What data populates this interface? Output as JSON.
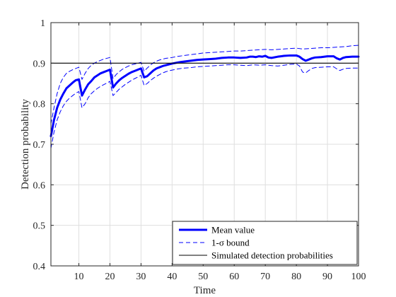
{
  "chart_data": {
    "type": "line",
    "xlabel": "Time",
    "ylabel": "Detection probability",
    "xlim": [
      1,
      100
    ],
    "ylim": [
      0.4,
      1
    ],
    "xticks": [
      10,
      20,
      30,
      40,
      50,
      60,
      70,
      80,
      90,
      100
    ],
    "yticks": [
      0.4,
      0.5,
      0.6,
      0.7,
      0.8,
      0.9,
      1
    ],
    "xtick_labels": [
      "10",
      "20",
      "30",
      "40",
      "50",
      "60",
      "70",
      "80",
      "90",
      "100"
    ],
    "ytick_labels": [
      "0.4",
      "0.5",
      "0.6",
      "0.7",
      "0.8",
      "0.9",
      "1"
    ],
    "grid": true,
    "legend_position": "bottom-right",
    "legend": [
      "Mean value",
      "1-σ bound",
      "Simulated detection probabilities"
    ],
    "colors": {
      "mean": "#0000ff",
      "bound": "#0000ff",
      "reference": "#000000",
      "grid": "#dfdfdf",
      "axis": "#262626"
    },
    "series": [
      {
        "name": "Mean value",
        "style": "solid-thick",
        "points": [
          [
            1,
            0.72
          ],
          [
            2,
            0.76
          ],
          [
            3,
            0.79
          ],
          [
            4,
            0.81
          ],
          [
            5,
            0.825
          ],
          [
            6,
            0.838
          ],
          [
            7,
            0.845
          ],
          [
            8,
            0.852
          ],
          [
            9,
            0.858
          ],
          [
            10,
            0.86
          ],
          [
            11,
            0.82
          ],
          [
            12,
            0.835
          ],
          [
            13,
            0.848
          ],
          [
            14,
            0.856
          ],
          [
            15,
            0.865
          ],
          [
            16,
            0.87
          ],
          [
            17,
            0.875
          ],
          [
            18,
            0.878
          ],
          [
            19,
            0.881
          ],
          [
            20,
            0.884
          ],
          [
            21,
            0.84
          ],
          [
            22,
            0.85
          ],
          [
            23,
            0.858
          ],
          [
            24,
            0.864
          ],
          [
            25,
            0.869
          ],
          [
            26,
            0.874
          ],
          [
            27,
            0.878
          ],
          [
            28,
            0.881
          ],
          [
            29,
            0.884
          ],
          [
            30,
            0.887
          ],
          [
            31,
            0.865
          ],
          [
            32,
            0.868
          ],
          [
            33,
            0.875
          ],
          [
            34,
            0.882
          ],
          [
            35,
            0.887
          ],
          [
            36,
            0.89
          ],
          [
            37,
            0.893
          ],
          [
            38,
            0.895
          ],
          [
            39,
            0.897
          ],
          [
            40,
            0.899
          ],
          [
            42,
            0.902
          ],
          [
            44,
            0.904
          ],
          [
            46,
            0.906
          ],
          [
            48,
            0.908
          ],
          [
            50,
            0.909
          ],
          [
            52,
            0.91
          ],
          [
            54,
            0.911
          ],
          [
            56,
            0.913
          ],
          [
            58,
            0.914
          ],
          [
            60,
            0.914
          ],
          [
            62,
            0.913
          ],
          [
            64,
            0.914
          ],
          [
            65,
            0.916
          ],
          [
            66,
            0.916
          ],
          [
            67,
            0.915
          ],
          [
            68,
            0.917
          ],
          [
            69,
            0.916
          ],
          [
            70,
            0.918
          ],
          [
            71,
            0.914
          ],
          [
            72,
            0.913
          ],
          [
            74,
            0.916
          ],
          [
            75,
            0.917
          ],
          [
            76,
            0.918
          ],
          [
            78,
            0.919
          ],
          [
            80,
            0.919
          ],
          [
            81,
            0.916
          ],
          [
            82,
            0.91
          ],
          [
            83,
            0.906
          ],
          [
            84,
            0.909
          ],
          [
            85,
            0.912
          ],
          [
            86,
            0.914
          ],
          [
            88,
            0.915
          ],
          [
            90,
            0.917
          ],
          [
            92,
            0.917
          ],
          [
            93,
            0.912
          ],
          [
            94,
            0.909
          ],
          [
            95,
            0.913
          ],
          [
            96,
            0.915
          ],
          [
            98,
            0.916
          ],
          [
            100,
            0.916
          ]
        ]
      },
      {
        "name": "1-σ bound",
        "style": "dashed",
        "points": [
          [
            1,
            0.75
          ],
          [
            2,
            0.79
          ],
          [
            3,
            0.825
          ],
          [
            4,
            0.85
          ],
          [
            5,
            0.865
          ],
          [
            6,
            0.875
          ],
          [
            7,
            0.88
          ],
          [
            8,
            0.884
          ],
          [
            9,
            0.887
          ],
          [
            10,
            0.89
          ],
          [
            11,
            0.86
          ],
          [
            12,
            0.875
          ],
          [
            13,
            0.887
          ],
          [
            14,
            0.895
          ],
          [
            15,
            0.9
          ],
          [
            16,
            0.904
          ],
          [
            17,
            0.907
          ],
          [
            18,
            0.91
          ],
          [
            19,
            0.912
          ],
          [
            20,
            0.914
          ],
          [
            21,
            0.862
          ],
          [
            22,
            0.872
          ],
          [
            23,
            0.879
          ],
          [
            24,
            0.885
          ],
          [
            25,
            0.889
          ],
          [
            26,
            0.893
          ],
          [
            27,
            0.896
          ],
          [
            28,
            0.898
          ],
          [
            29,
            0.9
          ],
          [
            30,
            0.902
          ],
          [
            31,
            0.88
          ],
          [
            32,
            0.888
          ],
          [
            33,
            0.895
          ],
          [
            34,
            0.901
          ],
          [
            35,
            0.905
          ],
          [
            36,
            0.908
          ],
          [
            37,
            0.91
          ],
          [
            38,
            0.912
          ],
          [
            39,
            0.913
          ],
          [
            40,
            0.914
          ],
          [
            42,
            0.917
          ],
          [
            44,
            0.919
          ],
          [
            46,
            0.921
          ],
          [
            48,
            0.923
          ],
          [
            50,
            0.925
          ],
          [
            52,
            0.926
          ],
          [
            54,
            0.927
          ],
          [
            56,
            0.928
          ],
          [
            58,
            0.929
          ],
          [
            60,
            0.93
          ],
          [
            62,
            0.93
          ],
          [
            64,
            0.931
          ],
          [
            66,
            0.932
          ],
          [
            68,
            0.933
          ],
          [
            70,
            0.934
          ],
          [
            72,
            0.933
          ],
          [
            74,
            0.934
          ],
          [
            76,
            0.935
          ],
          [
            78,
            0.936
          ],
          [
            80,
            0.937
          ],
          [
            82,
            0.935
          ],
          [
            84,
            0.936
          ],
          [
            86,
            0.937
          ],
          [
            88,
            0.938
          ],
          [
            90,
            0.938
          ],
          [
            92,
            0.939
          ],
          [
            94,
            0.94
          ],
          [
            96,
            0.941
          ],
          [
            98,
            0.943
          ],
          [
            100,
            0.944
          ]
        ]
      },
      {
        "name": "1-σ bound",
        "style": "dashed",
        "points": [
          [
            1,
            0.69
          ],
          [
            2,
            0.73
          ],
          [
            3,
            0.76
          ],
          [
            4,
            0.78
          ],
          [
            5,
            0.795
          ],
          [
            6,
            0.806
          ],
          [
            7,
            0.814
          ],
          [
            8,
            0.82
          ],
          [
            9,
            0.826
          ],
          [
            10,
            0.83
          ],
          [
            11,
            0.79
          ],
          [
            12,
            0.8
          ],
          [
            13,
            0.815
          ],
          [
            14,
            0.825
          ],
          [
            15,
            0.832
          ],
          [
            16,
            0.838
          ],
          [
            17,
            0.843
          ],
          [
            18,
            0.847
          ],
          [
            19,
            0.851
          ],
          [
            20,
            0.855
          ],
          [
            21,
            0.82
          ],
          [
            22,
            0.828
          ],
          [
            23,
            0.836
          ],
          [
            24,
            0.842
          ],
          [
            25,
            0.848
          ],
          [
            26,
            0.853
          ],
          [
            27,
            0.858
          ],
          [
            28,
            0.862
          ],
          [
            29,
            0.866
          ],
          [
            30,
            0.87
          ],
          [
            31,
            0.845
          ],
          [
            32,
            0.85
          ],
          [
            33,
            0.857
          ],
          [
            34,
            0.863
          ],
          [
            35,
            0.868
          ],
          [
            36,
            0.872
          ],
          [
            37,
            0.876
          ],
          [
            38,
            0.879
          ],
          [
            39,
            0.881
          ],
          [
            40,
            0.883
          ],
          [
            42,
            0.886
          ],
          [
            44,
            0.888
          ],
          [
            46,
            0.889
          ],
          [
            48,
            0.891
          ],
          [
            50,
            0.892
          ],
          [
            52,
            0.893
          ],
          [
            54,
            0.894
          ],
          [
            56,
            0.895
          ],
          [
            58,
            0.896
          ],
          [
            60,
            0.896
          ],
          [
            62,
            0.895
          ],
          [
            64,
            0.894
          ],
          [
            66,
            0.896
          ],
          [
            68,
            0.895
          ],
          [
            70,
            0.896
          ],
          [
            72,
            0.894
          ],
          [
            74,
            0.893
          ],
          [
            76,
            0.895
          ],
          [
            78,
            0.897
          ],
          [
            80,
            0.898
          ],
          [
            81,
            0.893
          ],
          [
            82,
            0.878
          ],
          [
            83,
            0.876
          ],
          [
            84,
            0.882
          ],
          [
            85,
            0.887
          ],
          [
            86,
            0.889
          ],
          [
            88,
            0.89
          ],
          [
            90,
            0.891
          ],
          [
            92,
            0.891
          ],
          [
            93,
            0.886
          ],
          [
            94,
            0.882
          ],
          [
            95,
            0.885
          ],
          [
            96,
            0.887
          ],
          [
            98,
            0.888
          ],
          [
            100,
            0.888
          ]
        ]
      },
      {
        "name": "Simulated detection probabilities",
        "style": "solid-thin",
        "points": [
          [
            1,
            0.9
          ],
          [
            100,
            0.9
          ]
        ]
      }
    ]
  }
}
